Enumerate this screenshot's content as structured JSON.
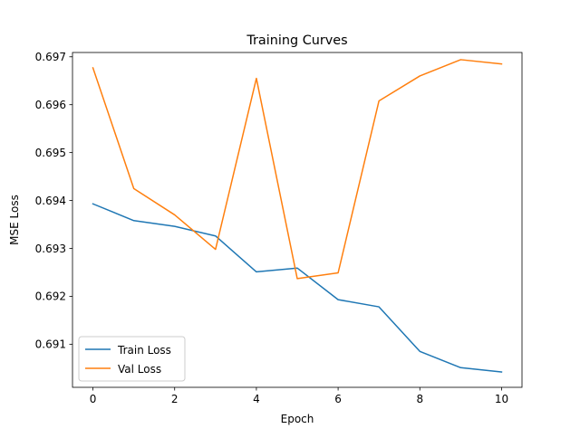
{
  "chart_data": {
    "type": "line",
    "title": "Training Curves",
    "xlabel": "Epoch",
    "ylabel": "MSE Loss",
    "xlim": [
      -0.5,
      10.5
    ],
    "ylim": [
      0.6901,
      0.69709
    ],
    "xticks": [
      0,
      2,
      4,
      6,
      8,
      10
    ],
    "yticks": [
      0.691,
      0.692,
      0.693,
      0.694,
      0.695,
      0.696,
      0.697
    ],
    "ytick_labels": [
      "0.691",
      "0.692",
      "0.693",
      "0.694",
      "0.695",
      "0.696",
      "0.697"
    ],
    "grid": false,
    "legend_position": "lower-left",
    "x": [
      0,
      1,
      2,
      3,
      4,
      5,
      6,
      7,
      8,
      9,
      10
    ],
    "series": [
      {
        "name": "Train Loss",
        "color": "#1f77b4",
        "values": [
          0.69393,
          0.69358,
          0.69346,
          0.69326,
          0.69251,
          0.69259,
          0.69193,
          0.69178,
          0.69085,
          0.69051,
          0.69042
        ]
      },
      {
        "name": "Val Loss",
        "color": "#ff7f0e",
        "values": [
          0.69677,
          0.69425,
          0.6937,
          0.69298,
          0.69655,
          0.69237,
          0.69249,
          0.69608,
          0.6966,
          0.69694,
          0.69685
        ]
      }
    ]
  }
}
